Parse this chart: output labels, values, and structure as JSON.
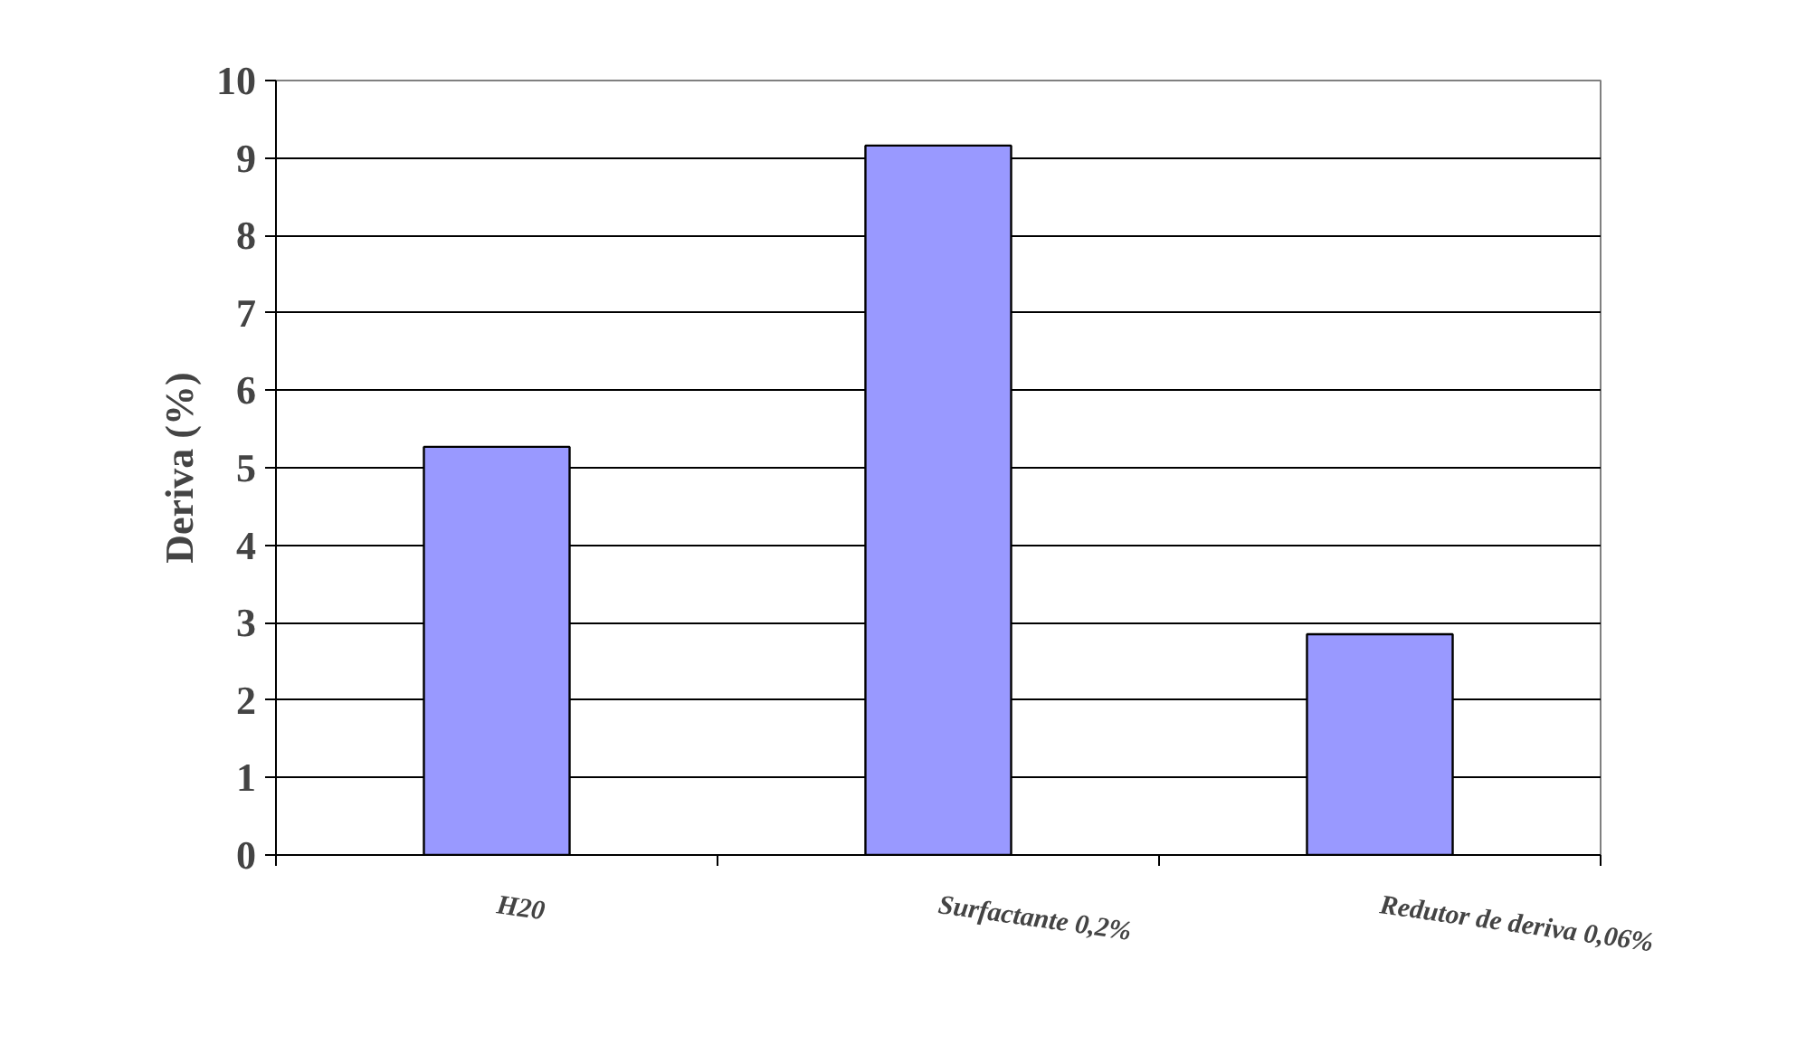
{
  "chart_data": {
    "type": "bar",
    "ylabel": "Deriva (%)",
    "categories": [
      "H20",
      "Surfactante 0,2%",
      "Redutor de deriva 0,06%"
    ],
    "values": [
      5.27,
      9.16,
      2.85
    ],
    "color": "#9999ff",
    "ylim": [
      0,
      10
    ],
    "yticks": [
      0,
      1,
      2,
      3,
      4,
      5,
      6,
      7,
      8,
      9,
      10
    ],
    "grid": "y"
  }
}
